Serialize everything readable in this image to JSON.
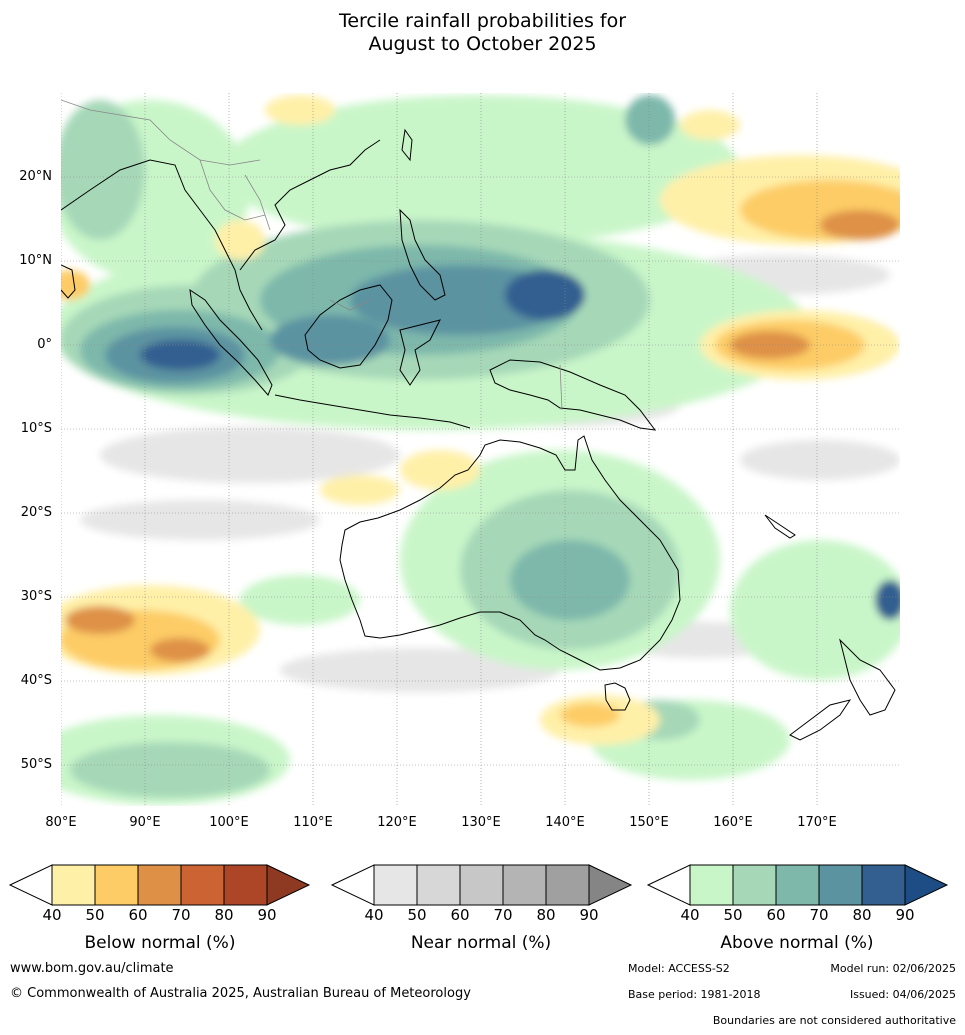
{
  "title": {
    "line1": "Tercile rainfall probabilities for",
    "line2": "August to October 2025"
  },
  "map": {
    "lat_labels": [
      "20°N",
      "10°N",
      "0°",
      "10°S",
      "20°S",
      "30°S",
      "40°S",
      "50°S"
    ],
    "lon_labels": [
      "80°E",
      "90°E",
      "100°E",
      "110°E",
      "120°E",
      "130°E",
      "140°E",
      "150°E",
      "160°E",
      "170°E"
    ]
  },
  "legends": [
    {
      "label": "Below normal (%)",
      "ticks": [
        "40",
        "50",
        "60",
        "70",
        "80",
        "90"
      ],
      "colors": [
        "#fff0a8",
        "#fdcc66",
        "#de9146",
        "#cb6432",
        "#ad4627",
        "#8e3a22"
      ]
    },
    {
      "label": "Near normal (%)",
      "ticks": [
        "40",
        "50",
        "60",
        "70",
        "80",
        "90"
      ],
      "colors": [
        "#e6e6e6",
        "#d7d7d7",
        "#c7c7c7",
        "#b4b4b4",
        "#a0a0a0",
        "#858585"
      ]
    },
    {
      "label": "Above normal (%)",
      "ticks": [
        "40",
        "50",
        "60",
        "70",
        "80",
        "90"
      ],
      "colors": [
        "#c9f6c9",
        "#a6d8b8",
        "#7db8ab",
        "#5c93a1",
        "#335f90",
        "#1e4d85"
      ]
    }
  ],
  "footer": {
    "website": "www.bom.gov.au/climate",
    "copyright": "© Commonwealth of Australia 2025, Australian Bureau of Meteorology",
    "model": "Model: ACCESS-S2",
    "model_run": "Model run: 02/06/2025",
    "base_period": "Base period: 1981-2018",
    "issued": "Issued: 04/06/2025",
    "disclaimer": "Boundaries are not considered authoritative"
  }
}
